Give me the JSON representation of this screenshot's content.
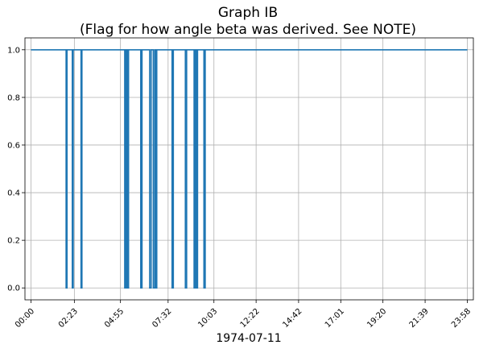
{
  "chart_data": {
    "type": "line",
    "title_line1": "Graph IB",
    "title_line2": "(Flag for how angle beta was derived. See NOTE)",
    "xlabel": "1974-07-11",
    "ylabel": "",
    "x_unit": "hours",
    "xlim": [
      -0.33,
      24.3
    ],
    "ylim": [
      -0.05,
      1.05
    ],
    "grid": true,
    "line_color": "#1f77b4",
    "x_ticks": [
      {
        "value": 0.0,
        "label": "00:00"
      },
      {
        "value": 2.383,
        "label": "02:23"
      },
      {
        "value": 4.917,
        "label": "04:55"
      },
      {
        "value": 7.533,
        "label": "07:32"
      },
      {
        "value": 10.05,
        "label": "10:03"
      },
      {
        "value": 12.367,
        "label": "12:22"
      },
      {
        "value": 14.7,
        "label": "14:42"
      },
      {
        "value": 17.017,
        "label": "17:01"
      },
      {
        "value": 19.333,
        "label": "19:20"
      },
      {
        "value": 21.65,
        "label": "21:39"
      },
      {
        "value": 23.967,
        "label": "23:58"
      }
    ],
    "y_ticks": [
      {
        "value": 0.0,
        "label": "0.0"
      },
      {
        "value": 0.2,
        "label": "0.2"
      },
      {
        "value": 0.4,
        "label": "0.4"
      },
      {
        "value": 0.6,
        "label": "0.6"
      },
      {
        "value": 0.8,
        "label": "0.8"
      },
      {
        "value": 1.0,
        "label": "1.0"
      }
    ],
    "x": [
      0.0,
      1.93,
      1.93,
      1.98,
      1.98,
      2.27,
      2.27,
      2.32,
      2.32,
      2.75,
      2.75,
      2.8,
      2.8,
      5.15,
      5.15,
      5.22,
      5.22,
      5.29,
      5.29,
      5.36,
      5.36,
      6.03,
      6.03,
      6.1,
      6.1,
      6.52,
      6.52,
      6.6,
      6.6,
      6.72,
      6.72,
      6.8,
      6.8,
      6.84,
      6.84,
      6.91,
      6.91,
      7.75,
      7.75,
      7.82,
      7.82,
      8.48,
      8.48,
      8.55,
      8.55,
      8.96,
      8.96,
      9.03,
      9.03,
      9.08,
      9.08,
      9.15,
      9.15,
      9.5,
      9.5,
      9.57,
      9.57,
      23.97
    ],
    "y": [
      1,
      1,
      0,
      0,
      1,
      1,
      0,
      0,
      1,
      1,
      0,
      0,
      1,
      1,
      0,
      0,
      1,
      1,
      0,
      0,
      1,
      1,
      0,
      0,
      1,
      1,
      0,
      0,
      1,
      1,
      0,
      0,
      1,
      1,
      0,
      0,
      1,
      1,
      0,
      0,
      1,
      1,
      0,
      0,
      1,
      1,
      0,
      0,
      1,
      1,
      0,
      0,
      1,
      1,
      0,
      0,
      1,
      1
    ]
  }
}
